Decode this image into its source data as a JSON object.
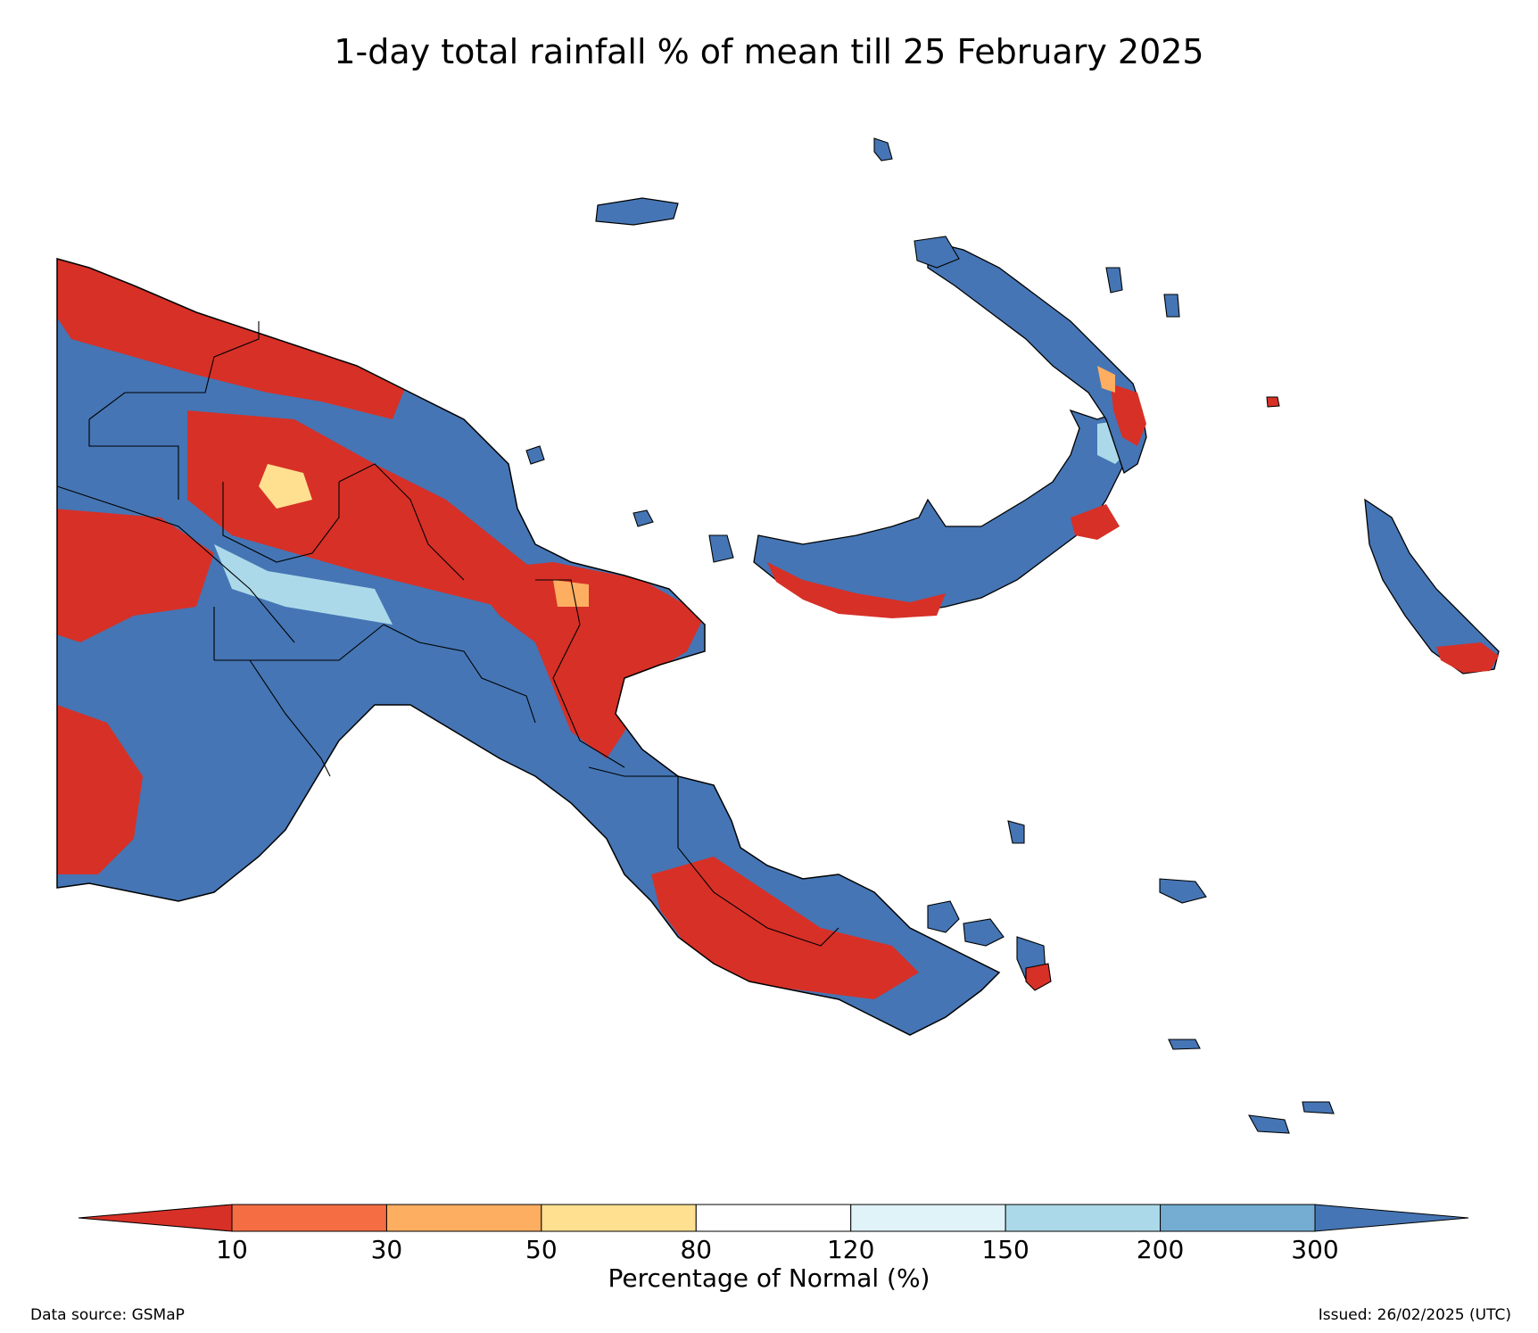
{
  "title": "1-day total rainfall % of mean till 25 February 2025",
  "colorbar": {
    "label": "Percentage of Normal (%)",
    "ticks": [
      "10",
      "30",
      "50",
      "80",
      "120",
      "150",
      "200",
      "300"
    ],
    "colors": {
      "below_10": "#d73027",
      "10_30": "#f46d43",
      "30_50": "#fdae61",
      "50_80": "#fee090",
      "80_120": "#ffffff",
      "120_150": "#e0f3f8",
      "150_200": "#abd9e9",
      "200_300": "#74add1",
      "above_300": "#4575b4"
    }
  },
  "footer": {
    "source": "Data source: GSMaP",
    "issued": "Issued: 26/02/2025 (UTC)"
  }
}
